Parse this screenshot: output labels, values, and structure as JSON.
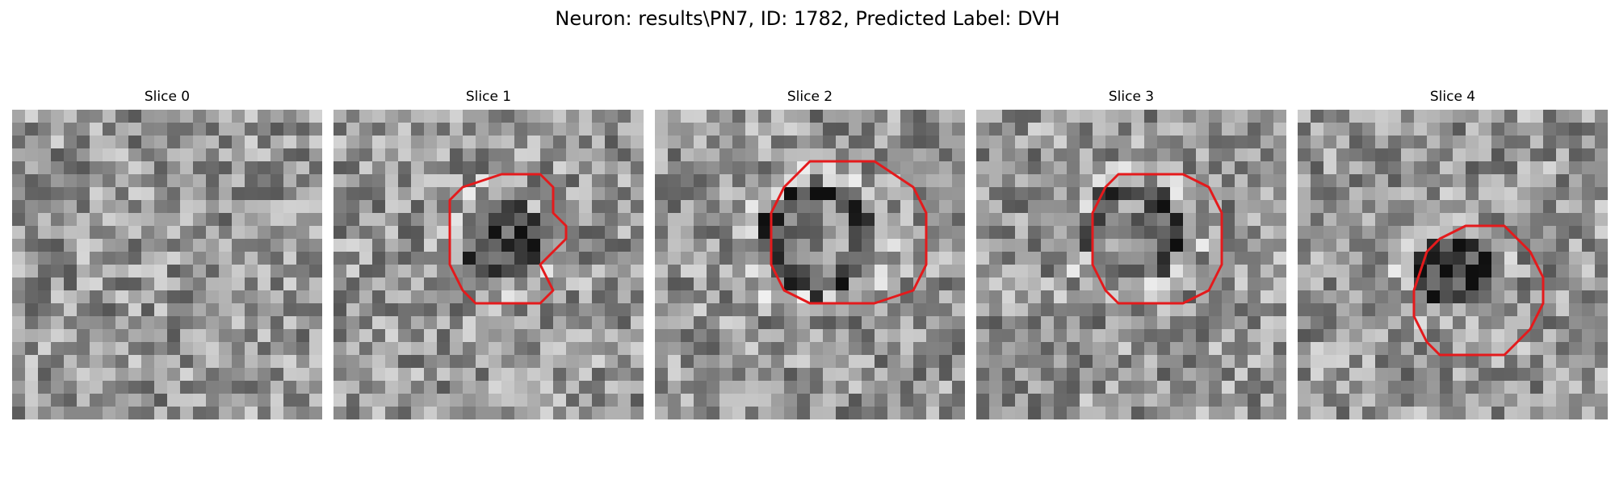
{
  "figure": {
    "title": "Neuron: results\\PN7, ID: 1782, Predicted Label: DVH"
  },
  "slices": [
    {
      "title": "Slice 0",
      "roi": null
    },
    {
      "title": "Slice 1",
      "roi": [
        [
          13,
          5
        ],
        [
          16,
          5
        ],
        [
          17,
          6
        ],
        [
          17,
          8
        ],
        [
          18,
          9
        ],
        [
          18,
          10
        ],
        [
          16,
          12
        ],
        [
          17,
          14
        ],
        [
          16,
          15
        ],
        [
          13,
          15
        ],
        [
          11,
          15
        ],
        [
          10,
          14
        ],
        [
          9,
          12
        ],
        [
          9,
          10
        ],
        [
          9,
          7
        ],
        [
          10,
          6
        ]
      ]
    },
    {
      "title": "Slice 2",
      "roi": [
        [
          15,
          4
        ],
        [
          17,
          4
        ],
        [
          20,
          6
        ],
        [
          21,
          8
        ],
        [
          21,
          12
        ],
        [
          20,
          14
        ],
        [
          17,
          15
        ],
        [
          15,
          15
        ],
        [
          12,
          15
        ],
        [
          10,
          14
        ],
        [
          9,
          12
        ],
        [
          9,
          8
        ],
        [
          10,
          6
        ],
        [
          12,
          4
        ]
      ]
    },
    {
      "title": "Slice 3",
      "roi": [
        [
          13,
          5
        ],
        [
          16,
          5
        ],
        [
          18,
          6
        ],
        [
          19,
          8
        ],
        [
          19,
          10
        ],
        [
          19,
          12
        ],
        [
          18,
          14
        ],
        [
          16,
          15
        ],
        [
          13,
          15
        ],
        [
          11,
          15
        ],
        [
          10,
          14
        ],
        [
          9,
          12
        ],
        [
          9,
          10
        ],
        [
          9,
          8
        ],
        [
          10,
          6
        ],
        [
          11,
          5
        ]
      ]
    },
    {
      "title": "Slice 4",
      "roi": [
        [
          13,
          9
        ],
        [
          16,
          9
        ],
        [
          18,
          11
        ],
        [
          19,
          13
        ],
        [
          19,
          15
        ],
        [
          18,
          17
        ],
        [
          16,
          19
        ],
        [
          13,
          19
        ],
        [
          11,
          19
        ],
        [
          10,
          18
        ],
        [
          9,
          16
        ],
        [
          9,
          14
        ],
        [
          10,
          11
        ],
        [
          11,
          10
        ]
      ]
    }
  ],
  "colors": {
    "roi": "#e41a1c"
  }
}
